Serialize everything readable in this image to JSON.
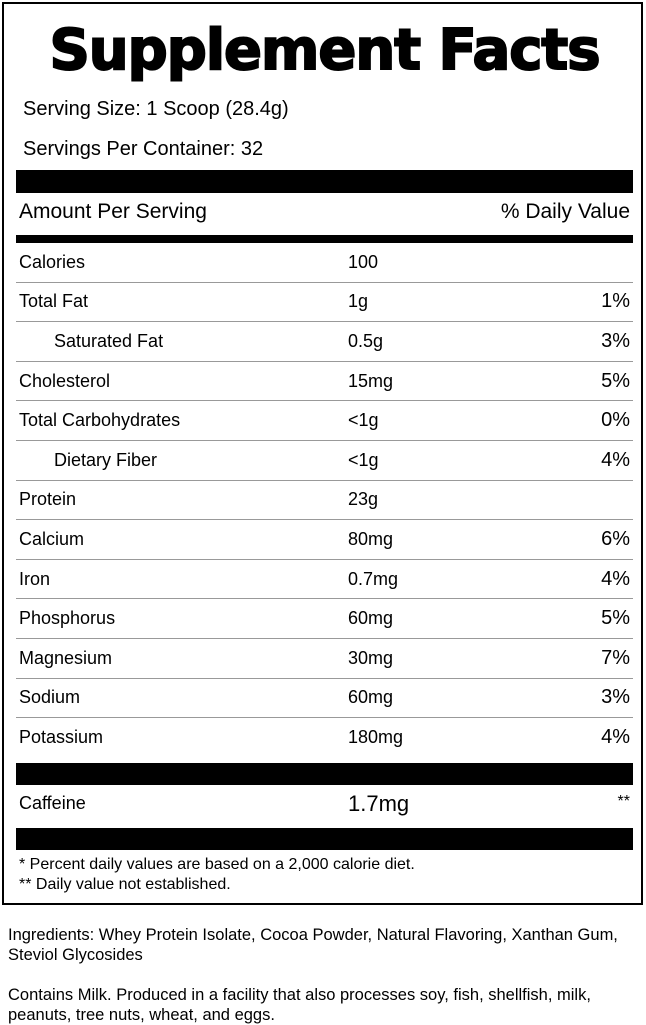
{
  "title": "Supplement Facts",
  "serving_size": "Serving Size: 1 Scoop (28.4g)",
  "servings_per_container": "Servings Per Container: 32",
  "header": {
    "amount": "Amount Per Serving",
    "dv": "% Daily Value"
  },
  "nutrients": [
    {
      "name": "Calories",
      "amount": "100",
      "dv": "",
      "indent": false
    },
    {
      "name": "Total Fat",
      "amount": "1g",
      "dv": "1%",
      "indent": false
    },
    {
      "name": "Saturated Fat",
      "amount": "0.5g",
      "dv": "3%",
      "indent": true
    },
    {
      "name": "Cholesterol",
      "amount": "15mg",
      "dv": "5%",
      "indent": false
    },
    {
      "name": "Total Carbohydrates",
      "amount": "<1g",
      "dv": "0%",
      "indent": false
    },
    {
      "name": "Dietary Fiber",
      "amount": "<1g",
      "dv": "4%",
      "indent": true
    },
    {
      "name": "Protein",
      "amount": "23g",
      "dv": "",
      "indent": false
    },
    {
      "name": "Calcium",
      "amount": "80mg",
      "dv": "6%",
      "indent": false
    },
    {
      "name": "Iron",
      "amount": "0.7mg",
      "dv": "4%",
      "indent": false
    },
    {
      "name": "Phosphorus",
      "amount": "60mg",
      "dv": "5%",
      "indent": false
    },
    {
      "name": "Magnesium",
      "amount": "30mg",
      "dv": "7%",
      "indent": false
    },
    {
      "name": "Sodium",
      "amount": "60mg",
      "dv": "3%",
      "indent": false
    },
    {
      "name": "Potassium",
      "amount": "180mg",
      "dv": "4%",
      "indent": false
    }
  ],
  "caffeine": {
    "name": "Caffeine",
    "amount": "1.7mg",
    "dv": "**"
  },
  "footnotes": [
    "* Percent daily values are based on a 2,000 calorie diet.",
    "** Daily value not established."
  ],
  "ingredients": "Ingredients: Whey Protein Isolate, Cocoa Powder, Natural Flavoring, Xanthan Gum, Steviol Glycosides",
  "allergens": "Contains Milk. Produced in a facility that also processes soy, fish, shellfish, milk, peanuts, tree nuts, wheat, and eggs."
}
